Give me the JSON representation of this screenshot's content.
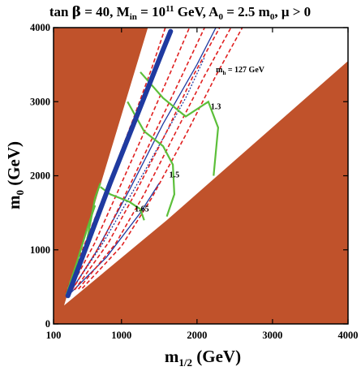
{
  "chart_data": {
    "type": "scatter",
    "title_parts": {
      "a": "tan ",
      "beta": "β",
      "b": " = 40, M",
      "in_sub": "in",
      "c": " = 10",
      "exp": "11",
      "d": " GeV, A",
      "zero_sub": "0",
      "e": " = 2.5 m",
      "zero_sub2": "0",
      "f": ", μ > 0"
    },
    "xlabel_parts": {
      "m": "m",
      "sub": "1/2",
      "unit": " (GeV)"
    },
    "ylabel_parts": {
      "m": "m",
      "sub": "0",
      "unit": " (GeV)"
    },
    "xlim": [
      100,
      4000
    ],
    "ylim": [
      0,
      4000
    ],
    "xticks": [
      {
        "value": 100,
        "label": "100"
      },
      {
        "value": 1000,
        "label": "1000"
      },
      {
        "value": 2000,
        "label": "2000"
      },
      {
        "value": 3000,
        "label": "3000"
      },
      {
        "value": 4000,
        "label": "4000"
      }
    ],
    "yticks": [
      {
        "value": 0,
        "label": "0"
      },
      {
        "value": 1000,
        "label": "1000"
      },
      {
        "value": 2000,
        "label": "2000"
      },
      {
        "value": 3000,
        "label": "3000"
      },
      {
        "value": 4000,
        "label": "4000"
      }
    ],
    "colors": {
      "excluded": "#c0522b",
      "relic": "#1f3aa0",
      "higgs": "#e02020",
      "bsmumu": "#5cbf3a"
    },
    "excluded_regions": [
      [
        [
          100,
          0
        ],
        [
          100,
          4000
        ],
        [
          1350,
          4000
        ],
        [
          240,
          250
        ],
        [
          240,
          0
        ]
      ],
      [
        [
          240,
          0
        ],
        [
          4000,
          0
        ],
        [
          4000,
          3550
        ],
        [
          1600,
          1400
        ],
        [
          240,
          250
        ]
      ]
    ],
    "relic_band": [
      [
        290,
        380
      ],
      [
        500,
        950
      ],
      [
        850,
        1900
      ],
      [
        1200,
        2800
      ],
      [
        1550,
        3700
      ],
      [
        1650,
        3950
      ]
    ],
    "relic_thin_lines": [
      [
        [
          290,
          380
        ],
        [
          650,
          950
        ],
        [
          1100,
          1800
        ],
        [
          1550,
          2700
        ],
        [
          2000,
          3500
        ],
        [
          2250,
          4000
        ]
      ],
      [
        [
          290,
          380
        ],
        [
          800,
          900
        ],
        [
          1250,
          1500
        ],
        [
          1500,
          1900
        ]
      ],
      [
        [
          290,
          380
        ],
        [
          760,
          1100
        ],
        [
          1300,
          2050
        ],
        [
          1850,
          3050
        ],
        [
          2100,
          3600
        ]
      ]
    ],
    "higgs_contours": [
      [
        [
          260,
          420
        ],
        [
          540,
          1150
        ],
        [
          870,
          2000
        ],
        [
          1150,
          2750
        ],
        [
          1400,
          3450
        ],
        [
          1580,
          4000
        ]
      ],
      [
        [
          300,
          430
        ],
        [
          650,
          1100
        ],
        [
          1000,
          1900
        ],
        [
          1350,
          2700
        ],
        [
          1650,
          3400
        ],
        [
          1900,
          4000
        ]
      ],
      [
        [
          340,
          450
        ],
        [
          740,
          1100
        ],
        [
          1100,
          1850
        ],
        [
          1450,
          2600
        ],
        [
          1800,
          3350
        ],
        [
          2100,
          4000
        ]
      ],
      [
        [
          380,
          460
        ],
        [
          830,
          1100
        ],
        [
          1200,
          1800
        ],
        [
          1600,
          2600
        ],
        [
          1950,
          3350
        ],
        [
          2300,
          4000
        ]
      ],
      [
        [
          430,
          470
        ],
        [
          920,
          1080
        ],
        [
          1300,
          1750
        ],
        [
          1700,
          2550
        ],
        [
          2100,
          3350
        ],
        [
          2450,
          4000
        ]
      ],
      [
        [
          480,
          480
        ],
        [
          1000,
          1050
        ],
        [
          1400,
          1700
        ],
        [
          1850,
          2550
        ],
        [
          2250,
          3350
        ],
        [
          2600,
          4000
        ]
      ]
    ],
    "higgs_label": {
      "x": 2250,
      "y": 3400,
      "text": "m",
      "sub": "h",
      "rest": " = 127 GeV"
    },
    "bsmumu_contours": [
      {
        "label": "1.3",
        "points": [
          [
            1250,
            3400
          ],
          [
            1550,
            3050
          ],
          [
            1850,
            2800
          ],
          [
            2150,
            3000
          ],
          [
            2280,
            2650
          ],
          [
            2220,
            2000
          ]
        ]
      },
      {
        "label": "1.5",
        "points": [
          [
            1080,
            3000
          ],
          [
            1300,
            2600
          ],
          [
            1550,
            2400
          ],
          [
            1680,
            2150
          ],
          [
            1700,
            1750
          ],
          [
            1600,
            1450
          ]
        ]
      },
      {
        "label": "1.65",
        "points": [
          [
            720,
            1850
          ],
          [
            850,
            1750
          ],
          [
            1100,
            1650
          ],
          [
            1250,
            1550
          ],
          [
            1300,
            1400
          ]
        ]
      },
      {
        "label": "",
        "points": [
          [
            290,
            400
          ],
          [
            500,
            900
          ],
          [
            650,
            1700
          ],
          [
            720,
            1900
          ]
        ]
      },
      {
        "label": "",
        "points": [
          [
            270,
            400
          ],
          [
            400,
            800
          ],
          [
            550,
            1300
          ],
          [
            650,
            1600
          ]
        ]
      }
    ],
    "bsmumu_label_positions": [
      [
        2250,
        2900
      ],
      [
        1700,
        1980
      ],
      [
        1270,
        1520
      ]
    ]
  }
}
